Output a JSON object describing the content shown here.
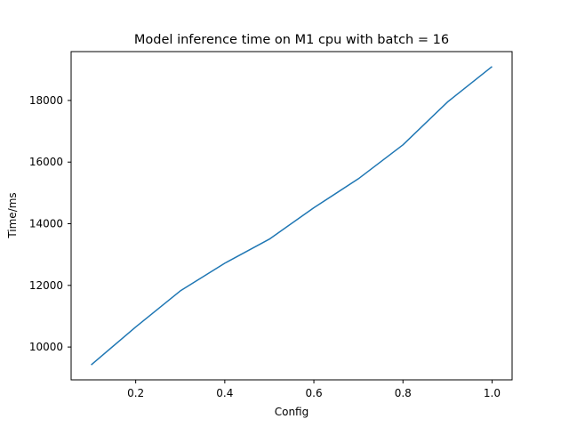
{
  "chart_data": {
    "type": "line",
    "title": "Model inference time on M1 cpu with batch = 16",
    "xlabel": "Config",
    "ylabel": "Time/ms",
    "x": [
      0.1,
      0.2,
      0.3,
      0.4,
      0.5,
      0.6,
      0.7,
      0.8,
      0.9,
      1.0
    ],
    "series": [
      {
        "name": "",
        "values": [
          9420,
          10650,
          11820,
          12720,
          13500,
          14520,
          15460,
          16560,
          17950,
          19100
        ]
      }
    ],
    "xlim": [
      0.055,
      1.045
    ],
    "ylim": [
      8935,
      19585
    ],
    "xticks": [
      0.2,
      0.4,
      0.6,
      0.8,
      1.0
    ],
    "xtick_labels": [
      "0.2",
      "0.4",
      "0.6",
      "0.8",
      "1.0"
    ],
    "yticks": [
      10000,
      12000,
      14000,
      16000,
      18000
    ],
    "ytick_labels": [
      "10000",
      "12000",
      "14000",
      "16000",
      "18000"
    ],
    "grid": false,
    "legend": "none",
    "colors": {
      "line": "#1f77b4",
      "axes": "#000000",
      "background": "#ffffff"
    }
  }
}
